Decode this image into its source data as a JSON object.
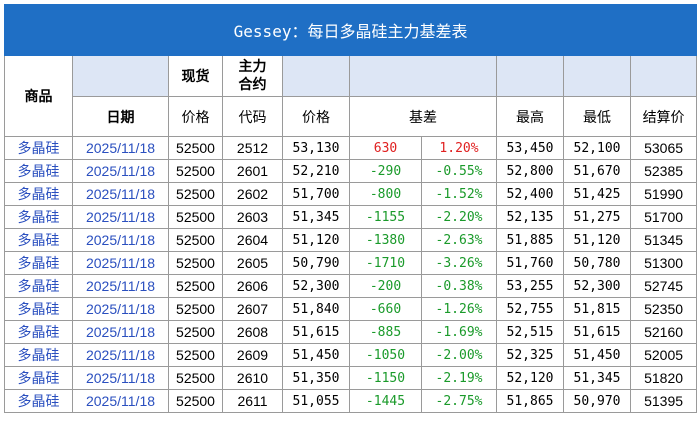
{
  "title": "Gessey：每日多晶硅主力基差表",
  "headers": {
    "product": "商品",
    "date": "日期",
    "spot": "现货",
    "spot_price": "价格",
    "main_contract": "主力\n合约",
    "code": "代码",
    "price": "价格",
    "basis": "基差",
    "high": "最高",
    "low": "最低",
    "settle": "结算价"
  },
  "colors": {
    "title_bg": "#1f6fc5",
    "link_blue": "#2a4fbf",
    "positive": "#e02020",
    "negative": "#1a9a2a"
  },
  "rows": [
    {
      "product": "多晶硅",
      "date": "2025/11/18",
      "spot": "52500",
      "code": "2512",
      "price": "53,130",
      "basis": "630",
      "pct": "1.20%",
      "high": "53,450",
      "low": "52,100",
      "settle": "53065",
      "sign": "pos"
    },
    {
      "product": "多晶硅",
      "date": "2025/11/18",
      "spot": "52500",
      "code": "2601",
      "price": "52,210",
      "basis": "-290",
      "pct": "-0.55%",
      "high": "52,800",
      "low": "51,670",
      "settle": "52385",
      "sign": "neg"
    },
    {
      "product": "多晶硅",
      "date": "2025/11/18",
      "spot": "52500",
      "code": "2602",
      "price": "51,700",
      "basis": "-800",
      "pct": "-1.52%",
      "high": "52,400",
      "low": "51,425",
      "settle": "51990",
      "sign": "neg"
    },
    {
      "product": "多晶硅",
      "date": "2025/11/18",
      "spot": "52500",
      "code": "2603",
      "price": "51,345",
      "basis": "-1155",
      "pct": "-2.20%",
      "high": "52,135",
      "low": "51,275",
      "settle": "51700",
      "sign": "neg"
    },
    {
      "product": "多晶硅",
      "date": "2025/11/18",
      "spot": "52500",
      "code": "2604",
      "price": "51,120",
      "basis": "-1380",
      "pct": "-2.63%",
      "high": "51,885",
      "low": "51,120",
      "settle": "51345",
      "sign": "neg"
    },
    {
      "product": "多晶硅",
      "date": "2025/11/18",
      "spot": "52500",
      "code": "2605",
      "price": "50,790",
      "basis": "-1710",
      "pct": "-3.26%",
      "high": "51,760",
      "low": "50,780",
      "settle": "51300",
      "sign": "neg"
    },
    {
      "product": "多晶硅",
      "date": "2025/11/18",
      "spot": "52500",
      "code": "2606",
      "price": "52,300",
      "basis": "-200",
      "pct": "-0.38%",
      "high": "53,255",
      "low": "52,300",
      "settle": "52745",
      "sign": "neg"
    },
    {
      "product": "多晶硅",
      "date": "2025/11/18",
      "spot": "52500",
      "code": "2607",
      "price": "51,840",
      "basis": "-660",
      "pct": "-1.26%",
      "high": "52,755",
      "low": "51,815",
      "settle": "52350",
      "sign": "neg"
    },
    {
      "product": "多晶硅",
      "date": "2025/11/18",
      "spot": "52500",
      "code": "2608",
      "price": "51,615",
      "basis": "-885",
      "pct": "-1.69%",
      "high": "52,515",
      "low": "51,615",
      "settle": "52160",
      "sign": "neg"
    },
    {
      "product": "多晶硅",
      "date": "2025/11/18",
      "spot": "52500",
      "code": "2609",
      "price": "51,450",
      "basis": "-1050",
      "pct": "-2.00%",
      "high": "52,325",
      "low": "51,450",
      "settle": "52005",
      "sign": "neg"
    },
    {
      "product": "多晶硅",
      "date": "2025/11/18",
      "spot": "52500",
      "code": "2610",
      "price": "51,350",
      "basis": "-1150",
      "pct": "-2.19%",
      "high": "52,120",
      "low": "51,345",
      "settle": "51820",
      "sign": "neg"
    },
    {
      "product": "多晶硅",
      "date": "2025/11/18",
      "spot": "52500",
      "code": "2611",
      "price": "51,055",
      "basis": "-1445",
      "pct": "-2.75%",
      "high": "51,865",
      "low": "50,970",
      "settle": "51395",
      "sign": "neg"
    }
  ]
}
